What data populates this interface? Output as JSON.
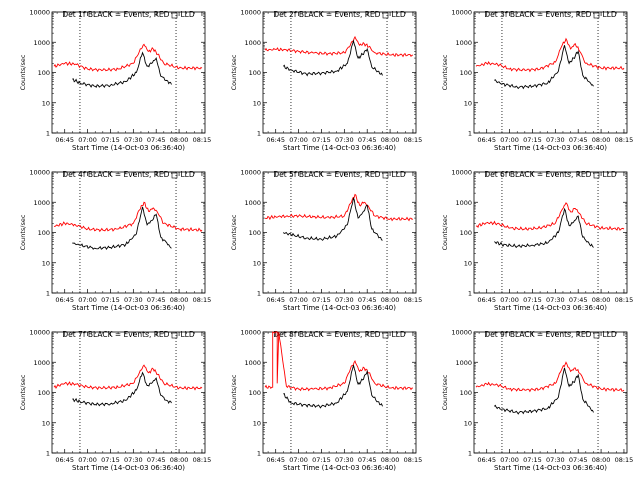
{
  "figure": {
    "start_time_label": "Start Time (14-Oct-03 06:36:40)",
    "ylabel": "Counts/sec",
    "x_ticks": [
      "06:45",
      "07:00",
      "07:15",
      "07:30",
      "07:45",
      "08:00",
      "08:15"
    ],
    "y_ticks": [
      "1",
      "10",
      "100",
      "1000",
      "10000"
    ],
    "colors": {
      "events": "#000000",
      "lld": "#ff0000"
    }
  },
  "chart_data": [
    {
      "type": "line",
      "title": "Det 1f BLACK = Events, RED = LLD",
      "xlabel": "Start Time (14-Oct-03 06:36:40)",
      "ylabel": "Counts/sec",
      "xlim": [
        "06:36:40",
        "08:17"
      ],
      "ylim": [
        1,
        10000
      ],
      "yscale": "log",
      "dotted_lines_at": [
        "06:55",
        "07:58"
      ],
      "series": [
        {
          "name": "Events",
          "color": "#000000",
          "x": [
            "06:50",
            "06:55",
            "07:05",
            "07:15",
            "07:25",
            "07:32",
            "07:36",
            "07:39",
            "07:42",
            "07:45",
            "07:48",
            "07:52",
            "07:55"
          ],
          "values": [
            60,
            45,
            35,
            38,
            50,
            100,
            450,
            160,
            200,
            300,
            75,
            55,
            40
          ]
        },
        {
          "name": "LLD",
          "color": "#ff0000",
          "x": [
            "06:38",
            "06:45",
            "06:52",
            "07:00",
            "07:10",
            "07:20",
            "07:30",
            "07:34",
            "07:37",
            "07:40",
            "07:43",
            "07:46",
            "07:50",
            "08:00",
            "08:15"
          ],
          "values": [
            160,
            200,
            190,
            130,
            120,
            130,
            200,
            500,
            850,
            500,
            600,
            400,
            200,
            140,
            140
          ]
        }
      ]
    },
    {
      "type": "line",
      "title": "Det 2f BLACK = Events, RED = LLD",
      "xlabel": "Start Time (14-Oct-03 06:36:40)",
      "ylabel": "Counts/sec",
      "xlim": [
        "06:36:40",
        "08:17"
      ],
      "ylim": [
        1,
        10000
      ],
      "yscale": "log",
      "dotted_lines_at": [
        "06:55",
        "07:58"
      ],
      "series": [
        {
          "name": "Events",
          "color": "#000000",
          "x": [
            "06:50",
            "06:55",
            "07:05",
            "07:15",
            "07:25",
            "07:32",
            "07:36",
            "07:39",
            "07:42",
            "07:45",
            "07:48",
            "07:52",
            "07:55"
          ],
          "values": [
            160,
            120,
            90,
            95,
            110,
            200,
            1100,
            300,
            400,
            600,
            150,
            110,
            80
          ]
        },
        {
          "name": "LLD",
          "color": "#ff0000",
          "x": [
            "06:38",
            "06:45",
            "06:52",
            "07:00",
            "07:10",
            "07:20",
            "07:30",
            "07:34",
            "07:37",
            "07:40",
            "07:43",
            "07:46",
            "07:50",
            "08:00",
            "08:15"
          ],
          "values": [
            550,
            580,
            560,
            500,
            440,
            420,
            450,
            800,
            1500,
            800,
            900,
            700,
            450,
            380,
            380
          ]
        }
      ]
    },
    {
      "type": "line",
      "title": "Det 3f BLACK = Events, RED = LLD",
      "xlabel": "Start Time (14-Oct-03 06:36:40)",
      "ylabel": "Counts/sec",
      "xlim": [
        "06:36:40",
        "08:17"
      ],
      "ylim": [
        1,
        10000
      ],
      "yscale": "log",
      "dotted_lines_at": [
        "06:55",
        "07:58"
      ],
      "series": [
        {
          "name": "Events",
          "color": "#000000",
          "x": [
            "06:50",
            "06:55",
            "07:05",
            "07:15",
            "07:25",
            "07:32",
            "07:36",
            "07:39",
            "07:42",
            "07:45",
            "07:48",
            "07:52",
            "07:55"
          ],
          "values": [
            55,
            42,
            33,
            35,
            45,
            110,
            800,
            200,
            300,
            500,
            80,
            50,
            35
          ]
        },
        {
          "name": "LLD",
          "color": "#ff0000",
          "x": [
            "06:38",
            "06:45",
            "06:52",
            "07:00",
            "07:10",
            "07:20",
            "07:30",
            "07:34",
            "07:37",
            "07:40",
            "07:43",
            "07:46",
            "07:50",
            "08:00",
            "08:15"
          ],
          "values": [
            160,
            200,
            190,
            130,
            120,
            130,
            220,
            700,
            1300,
            600,
            900,
            500,
            200,
            140,
            140
          ]
        }
      ]
    },
    {
      "type": "line",
      "title": "Det 4f BLACK = Events, RED = LLD",
      "xlabel": "Start Time (14-Oct-03 06:36:40)",
      "ylabel": "Counts/sec",
      "xlim": [
        "06:36:40",
        "08:17"
      ],
      "ylim": [
        1,
        10000
      ],
      "yscale": "log",
      "dotted_lines_at": [
        "06:55",
        "07:58"
      ],
      "series": [
        {
          "name": "Events",
          "color": "#000000",
          "x": [
            "06:50",
            "06:55",
            "07:05",
            "07:15",
            "07:25",
            "07:32",
            "07:36",
            "07:39",
            "07:42",
            "07:45",
            "07:48",
            "07:52",
            "07:55"
          ],
          "values": [
            45,
            38,
            30,
            32,
            40,
            90,
            700,
            180,
            250,
            400,
            70,
            45,
            30
          ]
        },
        {
          "name": "LLD",
          "color": "#ff0000",
          "x": [
            "06:38",
            "06:45",
            "06:52",
            "07:00",
            "07:10",
            "07:20",
            "07:30",
            "07:34",
            "07:37",
            "07:40",
            "07:43",
            "07:46",
            "07:50",
            "08:00",
            "08:15"
          ],
          "values": [
            160,
            200,
            180,
            130,
            120,
            130,
            200,
            550,
            1000,
            500,
            650,
            450,
            200,
            130,
            120
          ]
        }
      ]
    },
    {
      "type": "line",
      "title": "Det 5f BLACK = Events, RED = LLD",
      "xlabel": "Start Time (14-Oct-03 06:36:40)",
      "ylabel": "Counts/sec",
      "xlim": [
        "06:36:40",
        "08:17"
      ],
      "ylim": [
        1,
        10000
      ],
      "yscale": "log",
      "dotted_lines_at": [
        "06:55",
        "07:58"
      ],
      "series": [
        {
          "name": "Events",
          "color": "#000000",
          "x": [
            "06:50",
            "06:55",
            "07:05",
            "07:15",
            "07:25",
            "07:32",
            "07:36",
            "07:39",
            "07:42",
            "07:45",
            "07:48",
            "07:52",
            "07:55"
          ],
          "values": [
            100,
            85,
            65,
            60,
            75,
            180,
            1400,
            300,
            450,
            800,
            130,
            80,
            55
          ]
        },
        {
          "name": "LLD",
          "color": "#ff0000",
          "x": [
            "06:38",
            "06:45",
            "06:52",
            "07:00",
            "07:10",
            "07:20",
            "07:30",
            "07:34",
            "07:37",
            "07:40",
            "07:43",
            "07:46",
            "07:50",
            "08:00",
            "08:15"
          ],
          "values": [
            300,
            330,
            350,
            350,
            330,
            310,
            350,
            900,
            1800,
            800,
            1000,
            700,
            350,
            280,
            280
          ]
        }
      ]
    },
    {
      "type": "line",
      "title": "Det 6f BLACK = Events, RED = LLD",
      "xlabel": "Start Time (14-Oct-03 06:36:40)",
      "ylabel": "Counts/sec",
      "xlim": [
        "06:36:40",
        "08:17"
      ],
      "ylim": [
        1,
        10000
      ],
      "yscale": "log",
      "dotted_lines_at": [
        "06:55",
        "07:58"
      ],
      "series": [
        {
          "name": "Events",
          "color": "#000000",
          "x": [
            "06:50",
            "06:55",
            "07:05",
            "07:15",
            "07:25",
            "07:32",
            "07:36",
            "07:39",
            "07:42",
            "07:45",
            "07:48",
            "07:52",
            "07:55"
          ],
          "values": [
            50,
            40,
            35,
            38,
            45,
            100,
            600,
            170,
            220,
            350,
            70,
            45,
            32
          ]
        },
        {
          "name": "LLD",
          "color": "#ff0000",
          "x": [
            "06:38",
            "06:45",
            "06:52",
            "07:00",
            "07:10",
            "07:20",
            "07:30",
            "07:34",
            "07:37",
            "07:40",
            "07:43",
            "07:46",
            "07:50",
            "08:00",
            "08:15"
          ],
          "values": [
            160,
            210,
            200,
            140,
            130,
            140,
            200,
            520,
            950,
            480,
            620,
            420,
            200,
            140,
            130
          ]
        }
      ]
    },
    {
      "type": "line",
      "title": "Det 7f BLACK = Events, RED = LLD",
      "xlabel": "Start Time (14-Oct-03 06:36:40)",
      "ylabel": "Counts/sec",
      "xlim": [
        "06:36:40",
        "08:17"
      ],
      "ylim": [
        1,
        10000
      ],
      "yscale": "log",
      "dotted_lines_at": [
        "06:55",
        "07:58"
      ],
      "series": [
        {
          "name": "Events",
          "color": "#000000",
          "x": [
            "06:50",
            "06:55",
            "07:05",
            "07:15",
            "07:25",
            "07:32",
            "07:36",
            "07:39",
            "07:42",
            "07:45",
            "07:48",
            "07:52",
            "07:55"
          ],
          "values": [
            60,
            50,
            40,
            42,
            55,
            120,
            450,
            170,
            200,
            300,
            80,
            55,
            45
          ]
        },
        {
          "name": "LLD",
          "color": "#ff0000",
          "x": [
            "06:38",
            "06:45",
            "06:52",
            "07:00",
            "07:10",
            "07:20",
            "07:30",
            "07:34",
            "07:37",
            "07:40",
            "07:43",
            "07:46",
            "07:50",
            "08:00",
            "08:15"
          ],
          "values": [
            150,
            200,
            190,
            150,
            140,
            150,
            200,
            450,
            800,
            450,
            600,
            400,
            200,
            140,
            140
          ]
        }
      ]
    },
    {
      "type": "line",
      "title": "Det 8f BLACK = Events, RED = LLD",
      "xlabel": "Start Time (14-Oct-03 06:36:40)",
      "ylabel": "Counts/sec",
      "xlim": [
        "06:36:40",
        "08:17"
      ],
      "ylim": [
        1,
        10000
      ],
      "yscale": "log",
      "dotted_lines_at": [
        "06:55",
        "07:58"
      ],
      "series": [
        {
          "name": "Events",
          "color": "#000000",
          "x": [
            "06:50",
            "06:55",
            "07:05",
            "07:15",
            "07:25",
            "07:32",
            "07:36",
            "07:39",
            "07:42",
            "07:45",
            "07:48",
            "07:52",
            "07:55"
          ],
          "values": [
            90,
            45,
            38,
            35,
            45,
            110,
            800,
            190,
            260,
            500,
            80,
            50,
            35
          ]
        },
        {
          "name": "LLD",
          "color": "#ff0000",
          "x": [
            "06:38",
            "06:43",
            "06:43",
            "06:46",
            "06:46",
            "06:47",
            "06:52",
            "07:00",
            "07:10",
            "07:20",
            "07:30",
            "07:34",
            "07:37",
            "07:40",
            "07:43",
            "07:46",
            "07:50",
            "08:00",
            "08:15"
          ],
          "values": [
            150,
            150,
            10000,
            10000,
            200,
            10000,
            160,
            130,
            130,
            140,
            200,
            600,
            1100,
            500,
            650,
            450,
            200,
            140,
            140
          ]
        }
      ]
    },
    {
      "type": "line",
      "title": "Det 9f BLACK = Events, RED = LLD",
      "xlabel": "Start Time (14-Oct-03 06:36:40)",
      "ylabel": "Counts/sec",
      "xlim": [
        "06:36:40",
        "08:17"
      ],
      "ylim": [
        1,
        10000
      ],
      "yscale": "log",
      "dotted_lines_at": [
        "06:55",
        "07:58"
      ],
      "series": [
        {
          "name": "Events",
          "color": "#000000",
          "x": [
            "06:50",
            "06:55",
            "07:05",
            "07:15",
            "07:25",
            "07:32",
            "07:36",
            "07:39",
            "07:42",
            "07:45",
            "07:48",
            "07:52",
            "07:55"
          ],
          "values": [
            35,
            28,
            22,
            24,
            30,
            70,
            650,
            160,
            220,
            380,
            60,
            35,
            22
          ]
        },
        {
          "name": "LLD",
          "color": "#ff0000",
          "x": [
            "06:38",
            "06:45",
            "06:52",
            "07:00",
            "07:10",
            "07:20",
            "07:30",
            "07:34",
            "07:37",
            "07:40",
            "07:43",
            "07:46",
            "07:50",
            "08:00",
            "08:15"
          ],
          "values": [
            150,
            190,
            180,
            130,
            120,
            130,
            200,
            550,
            1000,
            500,
            650,
            430,
            200,
            130,
            120
          ]
        }
      ]
    }
  ]
}
